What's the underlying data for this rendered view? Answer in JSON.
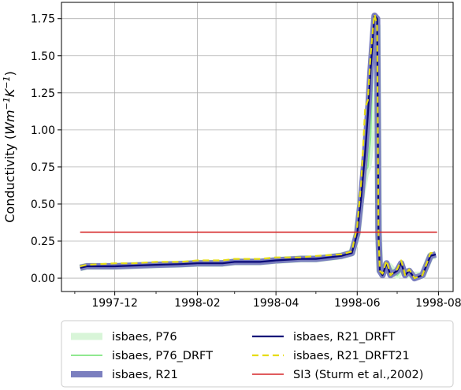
{
  "chart_data": {
    "type": "line",
    "ylabel_main": "Conductivity (",
    "ylabel_unit": "Wm",
    "ylabel_exp1": "−1",
    "ylabel_k": "K",
    "ylabel_exp2": "−1",
    "ylabel_close": ")",
    "xlabel": "",
    "ylim": [
      -0.09,
      1.86
    ],
    "xlim_days": [
      "1997-10-22",
      "1998-08-12"
    ],
    "grid": true,
    "legend_position": "bottom-outside",
    "x_ticks": [
      {
        "date": "1997-12-01",
        "label": "1997-12"
      },
      {
        "date": "1998-02-01",
        "label": "1998-02"
      },
      {
        "date": "1998-04-01",
        "label": "1998-04"
      },
      {
        "date": "1998-06-01",
        "label": "1998-06"
      },
      {
        "date": "1998-08-01",
        "label": "1998-08"
      }
    ],
    "x_minor_ticks": [
      "1997-11-01",
      "1998-01-01",
      "1998-03-01",
      "1998-05-01",
      "1998-07-01"
    ],
    "y_ticks": [
      {
        "value": 0.0,
        "label": "0.00"
      },
      {
        "value": 0.25,
        "label": "0.25"
      },
      {
        "value": 0.5,
        "label": "0.50"
      },
      {
        "value": 0.75,
        "label": "0.75"
      },
      {
        "value": 1.0,
        "label": "1.00"
      },
      {
        "value": 1.25,
        "label": "1.25"
      },
      {
        "value": 1.5,
        "label": "1.50"
      },
      {
        "value": 1.75,
        "label": "1.75"
      }
    ],
    "series": [
      {
        "name": "isbaes, P76",
        "color": "#d8f5d8",
        "width": 9,
        "dash": "",
        "points": [
          [
            "1997-11-05",
            0.07
          ],
          [
            "1997-11-10",
            0.08
          ],
          [
            "1997-11-20",
            0.08
          ],
          [
            "1997-12-01",
            0.08
          ],
          [
            "1997-12-15",
            0.085
          ],
          [
            "1998-01-01",
            0.09
          ],
          [
            "1998-01-20",
            0.095
          ],
          [
            "1998-02-01",
            0.1
          ],
          [
            "1998-02-20",
            0.1
          ],
          [
            "1998-03-01",
            0.11
          ],
          [
            "1998-03-20",
            0.11
          ],
          [
            "1998-04-01",
            0.12
          ],
          [
            "1998-04-20",
            0.13
          ],
          [
            "1998-05-01",
            0.13
          ],
          [
            "1998-05-20",
            0.15
          ],
          [
            "1998-05-28",
            0.17
          ],
          [
            "1998-06-01",
            0.3
          ],
          [
            "1998-06-04",
            0.55
          ],
          [
            "1998-06-07",
            0.7
          ],
          [
            "1998-06-09",
            0.75
          ],
          [
            "1998-06-11",
            0.9
          ],
          [
            "1998-06-12",
            1.2
          ],
          [
            "1998-06-13",
            1.6
          ],
          [
            "1998-06-14",
            1.75
          ],
          [
            "1998-06-16",
            1.7
          ],
          [
            "1998-06-17",
            0.3
          ],
          [
            "1998-06-18",
            0.05
          ],
          [
            "1998-06-25",
            0.08
          ],
          [
            "1998-07-01",
            0.02
          ],
          [
            "1998-07-05",
            0.06
          ],
          [
            "1998-07-10",
            0.02
          ],
          [
            "1998-07-20",
            0.02
          ],
          [
            "1998-07-26",
            0.15
          ],
          [
            "1998-07-30",
            0.15
          ]
        ]
      },
      {
        "name": "isbaes, P76_DRFT",
        "color": "#90e890",
        "width": 2,
        "dash": "",
        "points": [
          [
            "1997-11-05",
            0.07
          ],
          [
            "1997-11-10",
            0.08
          ],
          [
            "1997-11-20",
            0.08
          ],
          [
            "1997-12-01",
            0.08
          ],
          [
            "1997-12-15",
            0.085
          ],
          [
            "1998-01-01",
            0.09
          ],
          [
            "1998-01-20",
            0.095
          ],
          [
            "1998-02-01",
            0.1
          ],
          [
            "1998-02-20",
            0.1
          ],
          [
            "1998-03-01",
            0.11
          ],
          [
            "1998-03-20",
            0.11
          ],
          [
            "1998-04-01",
            0.12
          ],
          [
            "1998-04-20",
            0.13
          ],
          [
            "1998-05-01",
            0.13
          ],
          [
            "1998-05-20",
            0.15
          ],
          [
            "1998-05-28",
            0.17
          ],
          [
            "1998-06-01",
            0.3
          ],
          [
            "1998-06-04",
            0.55
          ],
          [
            "1998-06-07",
            0.72
          ],
          [
            "1998-06-09",
            0.75
          ],
          [
            "1998-06-11",
            0.95
          ],
          [
            "1998-06-12",
            1.25
          ],
          [
            "1998-06-13",
            1.6
          ],
          [
            "1998-06-14",
            1.75
          ],
          [
            "1998-06-16",
            1.7
          ],
          [
            "1998-06-17",
            0.3
          ],
          [
            "1998-06-18",
            0.05
          ],
          [
            "1998-06-25",
            0.08
          ],
          [
            "1998-07-01",
            0.02
          ],
          [
            "1998-07-05",
            0.06
          ],
          [
            "1998-07-10",
            0.02
          ],
          [
            "1998-07-20",
            0.02
          ],
          [
            "1998-07-26",
            0.15
          ],
          [
            "1998-07-30",
            0.15
          ]
        ]
      },
      {
        "name": "isbaes, R21",
        "color": "#7b7fbf",
        "width": 8,
        "dash": "",
        "points": [
          [
            "1997-11-05",
            0.07
          ],
          [
            "1997-11-10",
            0.08
          ],
          [
            "1997-11-20",
            0.08
          ],
          [
            "1997-12-01",
            0.08
          ],
          [
            "1997-12-15",
            0.085
          ],
          [
            "1998-01-01",
            0.09
          ],
          [
            "1998-01-20",
            0.095
          ],
          [
            "1998-02-01",
            0.1
          ],
          [
            "1998-02-20",
            0.1
          ],
          [
            "1998-03-01",
            0.11
          ],
          [
            "1998-03-20",
            0.11
          ],
          [
            "1998-04-01",
            0.12
          ],
          [
            "1998-04-20",
            0.13
          ],
          [
            "1998-05-01",
            0.13
          ],
          [
            "1998-05-20",
            0.15
          ],
          [
            "1998-05-28",
            0.17
          ],
          [
            "1998-06-01",
            0.3
          ],
          [
            "1998-06-04",
            0.55
          ],
          [
            "1998-06-07",
            0.85
          ],
          [
            "1998-06-09",
            1.1
          ],
          [
            "1998-06-11",
            1.4
          ],
          [
            "1998-06-13",
            1.65
          ],
          [
            "1998-06-14",
            1.77
          ],
          [
            "1998-06-16",
            1.75
          ],
          [
            "1998-06-17",
            0.3
          ],
          [
            "1998-06-18",
            0.05
          ],
          [
            "1998-06-20",
            0.02
          ],
          [
            "1998-06-23",
            0.1
          ],
          [
            "1998-06-26",
            0.02
          ],
          [
            "1998-07-01",
            0.05
          ],
          [
            "1998-07-04",
            0.1
          ],
          [
            "1998-07-07",
            0.02
          ],
          [
            "1998-07-10",
            0.05
          ],
          [
            "1998-07-14",
            0.0
          ],
          [
            "1998-07-20",
            0.02
          ],
          [
            "1998-07-26",
            0.15
          ],
          [
            "1998-07-30",
            0.16
          ]
        ]
      },
      {
        "name": "isbaes, R21_DRFT",
        "color": "#0a0a78",
        "width": 2.2,
        "dash": "",
        "points": [
          [
            "1997-11-05",
            0.07
          ],
          [
            "1997-11-10",
            0.08
          ],
          [
            "1997-11-20",
            0.08
          ],
          [
            "1997-12-01",
            0.08
          ],
          [
            "1997-12-15",
            0.085
          ],
          [
            "1998-01-01",
            0.09
          ],
          [
            "1998-01-20",
            0.095
          ],
          [
            "1998-02-01",
            0.1
          ],
          [
            "1998-02-20",
            0.1
          ],
          [
            "1998-03-01",
            0.11
          ],
          [
            "1998-03-20",
            0.11
          ],
          [
            "1998-04-01",
            0.12
          ],
          [
            "1998-04-20",
            0.13
          ],
          [
            "1998-05-01",
            0.13
          ],
          [
            "1998-05-20",
            0.15
          ],
          [
            "1998-05-28",
            0.17
          ],
          [
            "1998-06-01",
            0.3
          ],
          [
            "1998-06-04",
            0.55
          ],
          [
            "1998-06-07",
            0.85
          ],
          [
            "1998-06-09",
            1.1
          ],
          [
            "1998-06-11",
            1.4
          ],
          [
            "1998-06-13",
            1.65
          ],
          [
            "1998-06-14",
            1.77
          ],
          [
            "1998-06-16",
            1.75
          ],
          [
            "1998-06-17",
            0.3
          ],
          [
            "1998-06-18",
            0.05
          ],
          [
            "1998-06-20",
            0.02
          ],
          [
            "1998-06-23",
            0.1
          ],
          [
            "1998-06-26",
            0.02
          ],
          [
            "1998-07-01",
            0.05
          ],
          [
            "1998-07-04",
            0.1
          ],
          [
            "1998-07-07",
            0.02
          ],
          [
            "1998-07-10",
            0.05
          ],
          [
            "1998-07-14",
            0.0
          ],
          [
            "1998-07-20",
            0.02
          ],
          [
            "1998-07-26",
            0.15
          ],
          [
            "1998-07-30",
            0.16
          ]
        ]
      },
      {
        "name": "isbaes, R21_DRFT21",
        "color": "#e6dc14",
        "width": 2.2,
        "dash": "8,5",
        "points": [
          [
            "1997-11-05",
            0.08
          ],
          [
            "1997-11-10",
            0.09
          ],
          [
            "1997-11-20",
            0.095
          ],
          [
            "1997-12-01",
            0.1
          ],
          [
            "1997-12-15",
            0.1
          ],
          [
            "1998-01-01",
            0.11
          ],
          [
            "1998-01-20",
            0.11
          ],
          [
            "1998-02-01",
            0.12
          ],
          [
            "1998-02-20",
            0.12
          ],
          [
            "1998-03-01",
            0.13
          ],
          [
            "1998-03-20",
            0.13
          ],
          [
            "1998-04-01",
            0.14
          ],
          [
            "1998-04-20",
            0.14
          ],
          [
            "1998-05-01",
            0.15
          ],
          [
            "1998-05-20",
            0.16
          ],
          [
            "1998-05-28",
            0.18
          ],
          [
            "1998-06-01",
            0.35
          ],
          [
            "1998-06-04",
            0.65
          ],
          [
            "1998-06-07",
            1.15
          ],
          [
            "1998-06-09",
            1.2
          ],
          [
            "1998-06-11",
            1.5
          ],
          [
            "1998-06-13",
            1.7
          ],
          [
            "1998-06-14",
            1.78
          ],
          [
            "1998-06-16",
            1.7
          ],
          [
            "1998-06-17",
            0.3
          ],
          [
            "1998-06-18",
            0.05
          ],
          [
            "1998-06-20",
            0.03
          ],
          [
            "1998-06-23",
            0.12
          ],
          [
            "1998-06-26",
            0.02
          ],
          [
            "1998-07-01",
            0.06
          ],
          [
            "1998-07-04",
            0.12
          ],
          [
            "1998-07-07",
            0.02
          ],
          [
            "1998-07-10",
            0.06
          ],
          [
            "1998-07-14",
            0.0
          ],
          [
            "1998-07-20",
            0.02
          ],
          [
            "1998-07-26",
            0.17
          ],
          [
            "1998-07-30",
            0.17
          ]
        ]
      },
      {
        "name": "SI3 (Sturm et al.,2002)",
        "color": "#d62728",
        "width": 1.6,
        "dash": "",
        "points": [
          [
            "1997-11-05",
            0.31
          ],
          [
            "1998-07-31",
            0.31
          ]
        ]
      }
    ],
    "legend_columns": [
      [
        "isbaes, P76",
        "isbaes, P76_DRFT",
        "isbaes, R21"
      ],
      [
        "isbaes, R21_DRFT",
        "isbaes, R21_DRFT21",
        "SI3 (Sturm et al.,2002)"
      ]
    ]
  }
}
